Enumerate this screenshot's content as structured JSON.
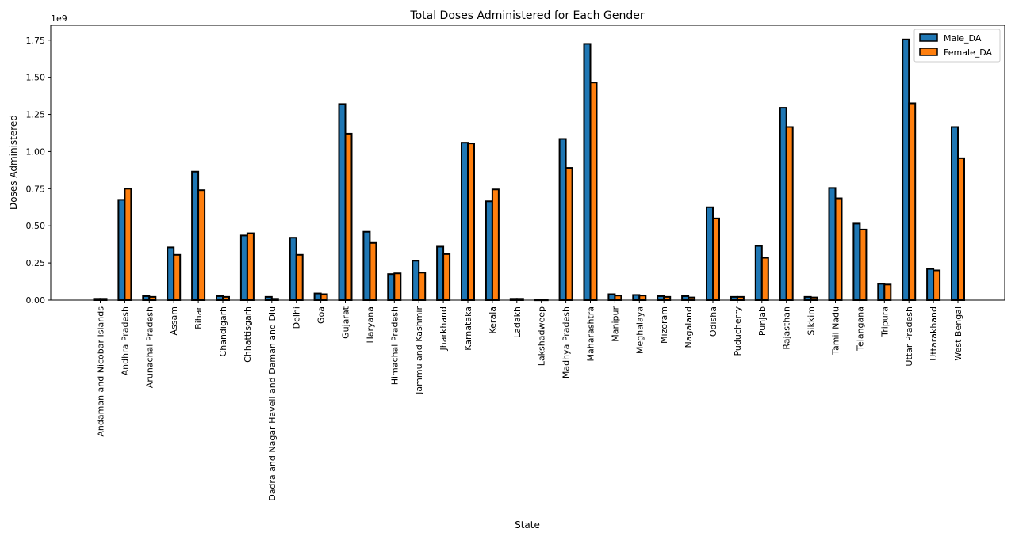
{
  "chart_data": {
    "type": "bar",
    "title": "Total Doses Administered for Each Gender",
    "xlabel": "State",
    "ylabel": "Doses Administered",
    "y_scale_label": "1e9",
    "ylim": [
      0,
      1.85
    ],
    "yticks": [
      "0.00",
      "0.25",
      "0.50",
      "0.75",
      "1.00",
      "1.25",
      "1.50",
      "1.75"
    ],
    "ytick_values": [
      0,
      0.25,
      0.5,
      0.75,
      1.0,
      1.25,
      1.5,
      1.75
    ],
    "grid": false,
    "legend_position": "top-right",
    "categories": [
      "Andaman and Nicobar Islands",
      "Andhra Pradesh",
      "Arunachal Pradesh",
      "Assam",
      "Bihar",
      "Chandigarh",
      "Chhattisgarh",
      "Dadra and Nagar Haveli and Daman and Diu",
      "Delhi",
      "Goa",
      "Gujarat",
      "Haryana",
      "Himachal Pradesh",
      "Jammu and Kashmir",
      "Jharkhand",
      "Karnataka",
      "Kerala",
      "Ladakh",
      "Lakshadweep",
      "Madhya Pradesh",
      "Maharashtra",
      "Manipur",
      "Meghalaya",
      "Mizoram",
      "Nagaland",
      "Odisha",
      "Puducherry",
      "Punjab",
      "Rajasthan",
      "Sikkim",
      "Tamil Nadu",
      "Telangana",
      "Tripura",
      "Uttar Pradesh",
      "Uttarakhand",
      "West Bengal"
    ],
    "series": [
      {
        "name": "Male_DA",
        "color": "#1f77b4",
        "values": [
          0.009,
          0.675,
          0.027,
          0.355,
          0.865,
          0.027,
          0.435,
          0.022,
          0.42,
          0.045,
          1.32,
          0.46,
          0.175,
          0.265,
          0.36,
          1.06,
          0.665,
          0.009,
          0.002,
          1.085,
          1.725,
          0.04,
          0.035,
          0.027,
          0.027,
          0.625,
          0.022,
          0.365,
          1.295,
          0.022,
          0.755,
          0.515,
          0.11,
          1.755,
          0.21,
          1.165
        ]
      },
      {
        "name": "Female_DA",
        "color": "#ff7f0e",
        "values": [
          0.009,
          0.75,
          0.022,
          0.305,
          0.74,
          0.022,
          0.45,
          0.009,
          0.305,
          0.04,
          1.12,
          0.385,
          0.18,
          0.185,
          0.31,
          1.055,
          0.745,
          0.009,
          0.002,
          0.89,
          1.465,
          0.031,
          0.031,
          0.022,
          0.018,
          0.55,
          0.022,
          0.285,
          1.165,
          0.018,
          0.685,
          0.475,
          0.105,
          1.325,
          0.2,
          0.955
        ]
      }
    ]
  }
}
